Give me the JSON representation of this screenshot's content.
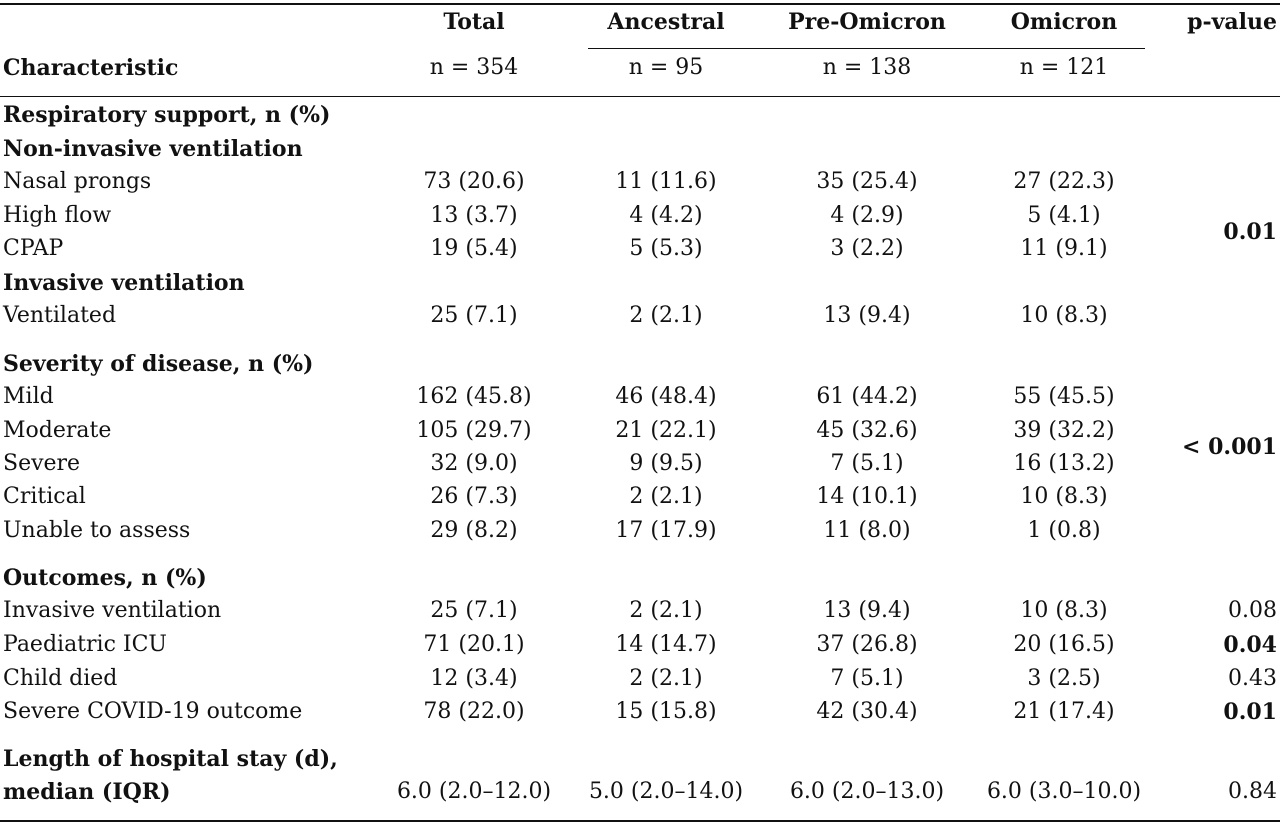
{
  "header": {
    "characteristic": "Characteristic",
    "pvalue": "p-value",
    "groups": [
      {
        "label": "Total",
        "n": "n = 354"
      },
      {
        "label": "Ancestral",
        "n": "n = 95"
      },
      {
        "label": "Pre-Omicron",
        "n": "n = 138"
      },
      {
        "label": "Omicron",
        "n": "n = 121"
      }
    ]
  },
  "sections": [
    {
      "title": "Respiratory support, n (%)"
    },
    {
      "title": "Non-invasive ventilation"
    },
    {
      "label": "Nasal prongs",
      "values": [
        "73 (20.6)",
        "11 (11.6)",
        "35 (25.4)",
        "27 (22.3)"
      ]
    },
    {
      "label": "High flow",
      "values": [
        "13 (3.7)",
        "4 (4.2)",
        "4 (2.9)",
        "5 (4.1)"
      ]
    },
    {
      "label": "CPAP",
      "values": [
        "19 (5.4)",
        "5 (5.3)",
        "3 (2.2)",
        "11 (9.1)"
      ]
    },
    {
      "title": "Invasive ventilation"
    },
    {
      "label": "Ventilated",
      "values": [
        "25 (7.1)",
        "2 (2.1)",
        "13 (9.4)",
        "10 (8.3)"
      ]
    },
    {
      "title": "Severity of disease, n (%)"
    },
    {
      "label": "Mild",
      "values": [
        "162 (45.8)",
        "46 (48.4)",
        "61 (44.2)",
        "55 (45.5)"
      ]
    },
    {
      "label": "Moderate",
      "values": [
        "105 (29.7)",
        "21 (22.1)",
        "45 (32.6)",
        "39 (32.2)"
      ]
    },
    {
      "label": "Severe",
      "values": [
        "32 (9.0)",
        "9 (9.5)",
        "7 (5.1)",
        "16 (13.2)"
      ]
    },
    {
      "label": "Critical",
      "values": [
        "26 (7.3)",
        "2 (2.1)",
        "14 (10.1)",
        "10 (8.3)"
      ]
    },
    {
      "label": "Unable to assess",
      "values": [
        "29 (8.2)",
        "17 (17.9)",
        "11 (8.0)",
        "1 (0.8)"
      ]
    },
    {
      "title": "Outcomes, n (%)"
    },
    {
      "label": "Invasive ventilation",
      "values": [
        "25 (7.1)",
        "2 (2.1)",
        "13 (9.4)",
        "10 (8.3)"
      ],
      "p": "0.08",
      "p_bold": false
    },
    {
      "label": "Paediatric ICU",
      "values": [
        "71 (20.1)",
        "14 (14.7)",
        "37 (26.8)",
        "20 (16.5)"
      ],
      "p": "0.04",
      "p_bold": true
    },
    {
      "label": "Child died",
      "values": [
        "12 (3.4)",
        "2 (2.1)",
        "7 (5.1)",
        "3 (2.5)"
      ],
      "p": "0.43",
      "p_bold": false
    },
    {
      "label": "Severe COVID-19 outcome",
      "values": [
        "78 (22.0)",
        "15 (15.8)",
        "42 (30.4)",
        "21 (17.4)"
      ],
      "p": "0.01",
      "p_bold": true
    },
    {
      "title": "Length of hospital stay (d),"
    },
    {
      "label": "median (IQR)",
      "label_bold": true,
      "values": [
        "6.0 (2.0–12.0)",
        "5.0 (2.0–14.0)",
        "6.0 (2.0–13.0)",
        "6.0 (3.0–10.0)"
      ],
      "p": "0.84",
      "p_bold": false
    }
  ],
  "group_pvalues": [
    {
      "value": "0.01",
      "bold": true
    },
    {
      "value": "< 0.001",
      "bold": true
    }
  ]
}
